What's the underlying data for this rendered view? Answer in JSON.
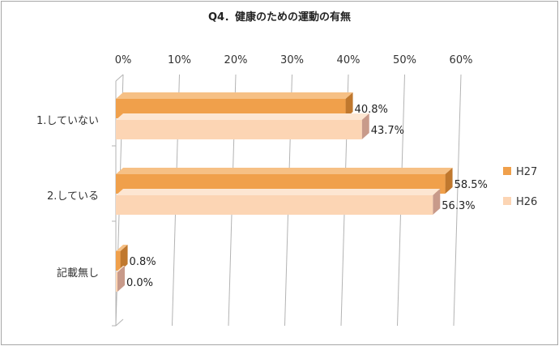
{
  "chart_data": {
    "type": "bar",
    "orientation": "horizontal",
    "title": "Q4．健康のための運動の有無",
    "categories": [
      "1.していない",
      "2.している",
      "記載無し"
    ],
    "series": [
      {
        "name": "H27",
        "values": [
          40.8,
          58.5,
          0.8
        ],
        "labels": [
          "40.8%",
          "58.5%",
          "0.8%"
        ]
      },
      {
        "name": "H26",
        "values": [
          43.7,
          56.3,
          0.0
        ],
        "labels": [
          "43.7%",
          "56.3%",
          "0.0%"
        ]
      }
    ],
    "xlim": [
      0,
      60
    ],
    "xticks": [
      "0%",
      "10%",
      "20%",
      "30%",
      "40%",
      "50%",
      "60%"
    ],
    "x_axis_position": "top",
    "grid": true,
    "legend": "right",
    "style": "3d"
  },
  "colors": {
    "H27_front": "#f0a04b",
    "H27_top": "#f6c085",
    "H27_side": "#c0782e",
    "H26_front": "#fcd5b4",
    "H26_top": "#fde6d2",
    "H26_side": "#c89a8a",
    "grid": "#b3b3b3"
  }
}
